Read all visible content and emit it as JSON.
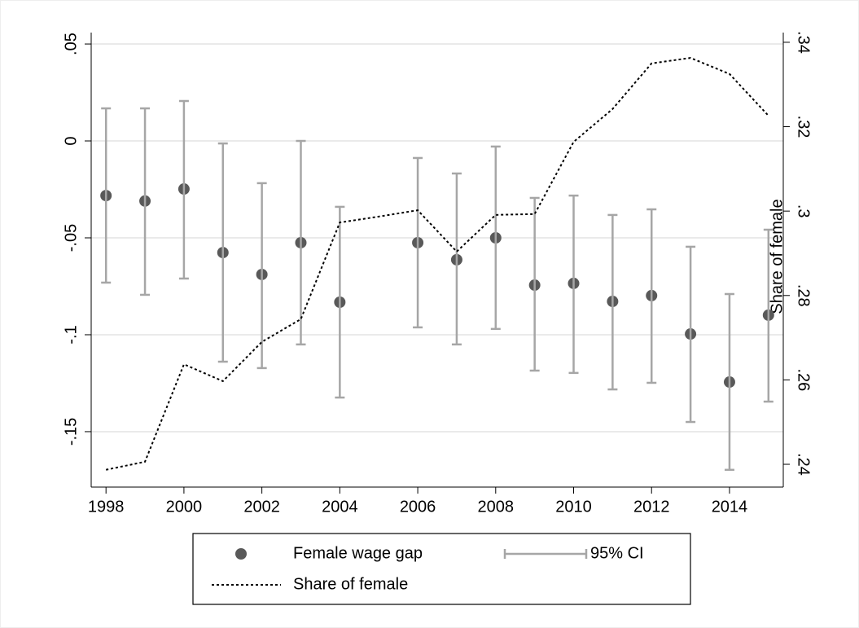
{
  "chart_data": {
    "type": "combo",
    "x": [
      1998,
      1999,
      2000,
      2001,
      2002,
      2003,
      2004,
      2005,
      2006,
      2007,
      2008,
      2009,
      2010,
      2011,
      2012,
      2013,
      2014,
      2015
    ],
    "series": [
      {
        "name": "Female wage gap",
        "style": "point",
        "color": "#595959",
        "values": [
          -0.0282,
          -0.031,
          -0.0248,
          -0.0576,
          -0.0689,
          -0.0525,
          -0.0832,
          null,
          -0.0525,
          -0.0613,
          -0.05,
          -0.0744,
          -0.0735,
          -0.0828,
          -0.0798,
          -0.0996,
          -0.1244,
          -0.0899
        ]
      },
      {
        "name": "95% CI",
        "style": "errorbar",
        "color": "#a6a6a6",
        "low": [
          -0.0731,
          -0.0794,
          -0.071,
          -0.1139,
          -0.1172,
          -0.105,
          -0.1324,
          null,
          -0.0962,
          -0.105,
          -0.097,
          -0.1185,
          -0.1197,
          -0.1282,
          -0.1248,
          -0.145,
          -0.1697,
          -0.1345
        ],
        "high": [
          0.0168,
          0.0168,
          0.0206,
          -0.0013,
          -0.0218,
          0,
          -0.034,
          null,
          -0.0088,
          -0.0168,
          -0.0029,
          -0.0294,
          -0.0282,
          -0.0382,
          -0.0353,
          -0.0546,
          -0.079,
          -0.0458
        ]
      },
      {
        "name": "Share of female",
        "style": "line",
        "axis": "y2",
        "color": "#000000",
        "values": [
          0.2387,
          0.2406,
          0.2637,
          0.2597,
          0.269,
          0.2744,
          0.2973,
          0.2987,
          0.3002,
          0.2904,
          0.2991,
          0.2993,
          0.3164,
          0.3242,
          0.335,
          0.3363,
          0.3325,
          0.3226
        ]
      }
    ],
    "xlim": [
      1997.62,
      2015.38
    ],
    "xticks": [
      1998,
      2000,
      2002,
      2004,
      2006,
      2008,
      2010,
      2012,
      2014
    ],
    "ylim": [
      -0.1786,
      0.0559
    ],
    "yticks": [
      {
        "value": -0.15,
        "label": "-.15"
      },
      {
        "value": -0.1,
        "label": "-.1"
      },
      {
        "value": -0.05,
        "label": "-.05"
      },
      {
        "value": 0,
        "label": "0"
      },
      {
        "value": 0.05,
        "label": ".05"
      }
    ],
    "y2lim": [
      0.2346,
      0.3423
    ],
    "y2ticks": [
      {
        "value": 0.24,
        "label": ".24"
      },
      {
        "value": 0.26,
        "label": ".26"
      },
      {
        "value": 0.28,
        "label": ".28"
      },
      {
        "value": 0.3,
        "label": ".3"
      },
      {
        "value": 0.32,
        "label": ".32"
      },
      {
        "value": 0.34,
        "label": ".34"
      }
    ],
    "y2label": "Share of female",
    "grid": true
  }
}
